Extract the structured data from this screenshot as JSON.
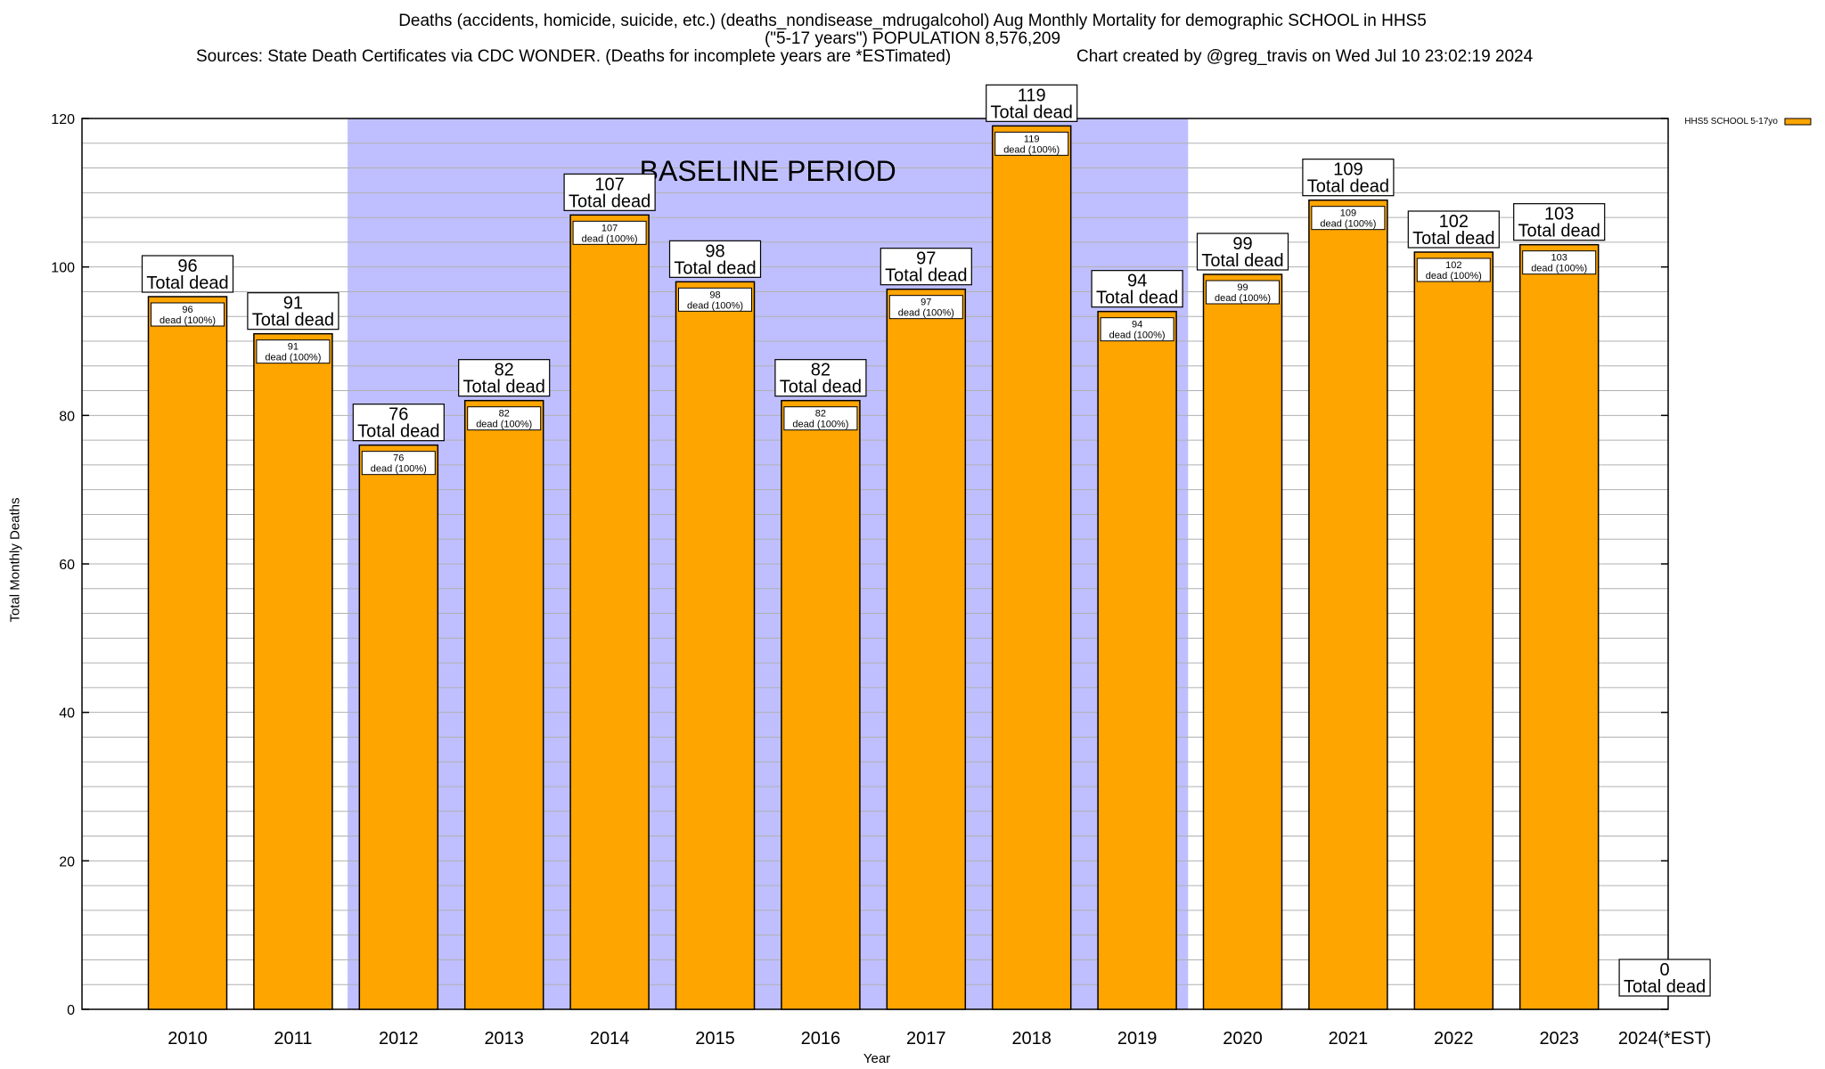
{
  "title_line1": "Deaths (accidents, homicide, suicide, etc.) (deaths_nondisease_mdrugalcohol) Aug Monthly Mortality for demographic SCHOOL in HHS5",
  "title_line2": "(\"5-17 years\") POPULATION 8,576,209",
  "sources": "Sources: State Death Certificates via CDC WONDER. (Deaths for incomplete years are *ESTimated)",
  "credit": "Chart created by @greg_travis on Wed Jul 10 23:02:19 2024",
  "colors": {
    "bar": "#FFA500",
    "baseline": "#BFBFFF",
    "grid": "#b0b0b0"
  },
  "chart_data": {
    "type": "bar",
    "categories": [
      "2010",
      "2011",
      "2012",
      "2013",
      "2014",
      "2015",
      "2016",
      "2017",
      "2018",
      "2019",
      "2020",
      "2021",
      "2022",
      "2023",
      "2024(*EST)"
    ],
    "series": [
      {
        "name": "HHS5 SCHOOL 5-17yo",
        "values": [
          96,
          91,
          76,
          82,
          107,
          98,
          82,
          97,
          119,
          94,
          99,
          109,
          102,
          103,
          0
        ]
      }
    ],
    "top_label_suffix": "Total dead",
    "inner_label_suffix": "dead (100%)",
    "baseline": {
      "label": "BASELINE PERIOD",
      "from": "2012",
      "to": "2019"
    },
    "xlabel": "Year",
    "ylabel": "Total Monthly Deaths",
    "ylim": [
      0,
      120
    ],
    "yticks": [
      0,
      20,
      40,
      60,
      80,
      100,
      120
    ],
    "grid": true,
    "legend_position": "top-right"
  }
}
